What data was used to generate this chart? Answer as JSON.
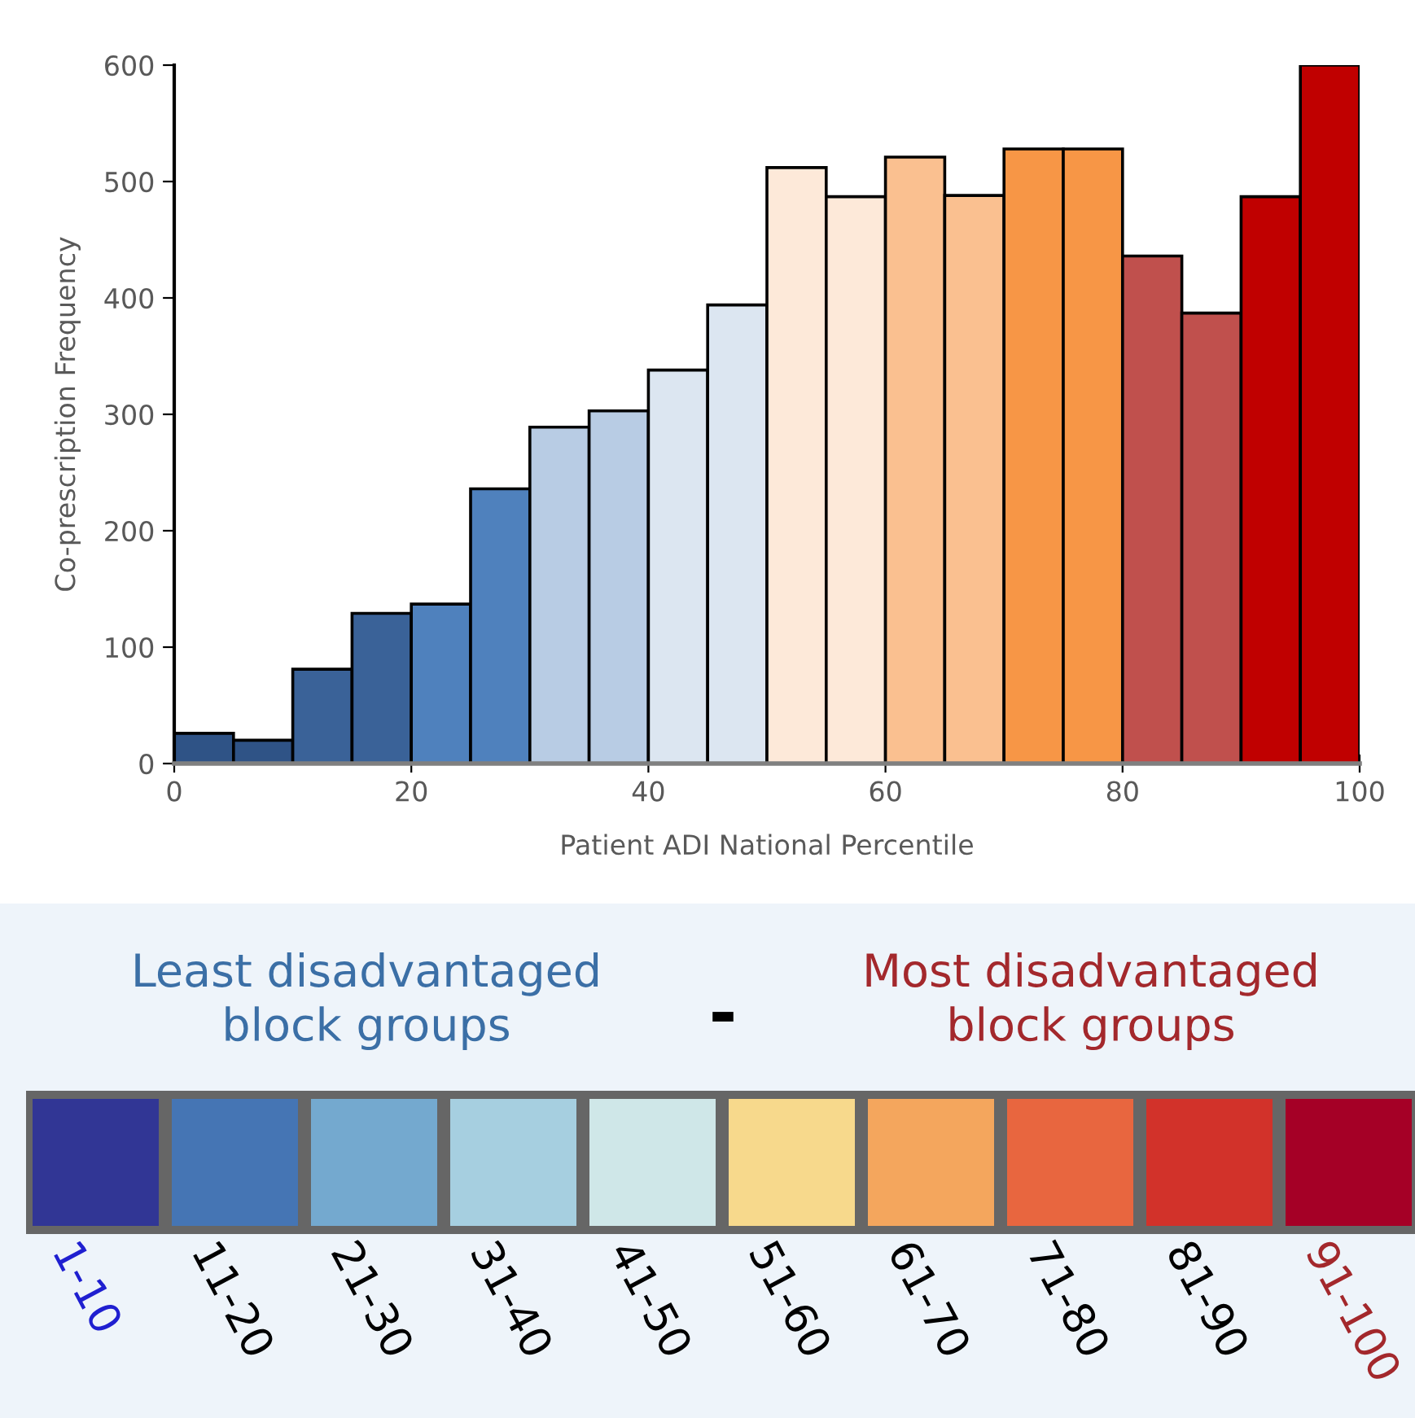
{
  "chart_data": [
    {
      "type": "histogram",
      "xlabel": "Patient ADI National Percentile",
      "ylabel": "Co-prescription Frequency",
      "bins": [
        0,
        5,
        10,
        15,
        20,
        25,
        30,
        35,
        40,
        45,
        50,
        55,
        60,
        65,
        70,
        75,
        80,
        85,
        90,
        95,
        100
      ],
      "values": [
        26,
        20,
        81,
        129,
        137,
        236,
        289,
        303,
        338,
        394,
        512,
        487,
        521,
        488,
        528,
        528,
        436,
        387,
        487,
        600
      ],
      "colors": [
        "#2f5386",
        "#2f5386",
        "#3a6298",
        "#3a6298",
        "#4f81bd",
        "#4f81bd",
        "#b8cce4",
        "#b8cce4",
        "#dce6f1",
        "#dce6f1",
        "#fde9d9",
        "#fde9d9",
        "#fac090",
        "#fac090",
        "#f79646",
        "#f79646",
        "#c0504d",
        "#c0504d",
        "#c00000",
        "#c00000"
      ],
      "xlim": [
        0,
        100
      ],
      "ylim": [
        0,
        600
      ],
      "xticks": [
        0,
        20,
        40,
        60,
        80,
        100
      ],
      "yticks": [
        0,
        100,
        200,
        300,
        400,
        500,
        600
      ],
      "grid": false
    },
    {
      "type": "other",
      "annotations": [
        "Least disadvantaged\nblock groups",
        "-",
        "Most disadvantaged\nblock groups"
      ],
      "categories": [
        "1-10",
        "11-20",
        "21-30",
        "31-40",
        "41-50",
        "51-60",
        "61-70",
        "71-80",
        "81-90",
        "91-100"
      ]
    }
  ]
}
